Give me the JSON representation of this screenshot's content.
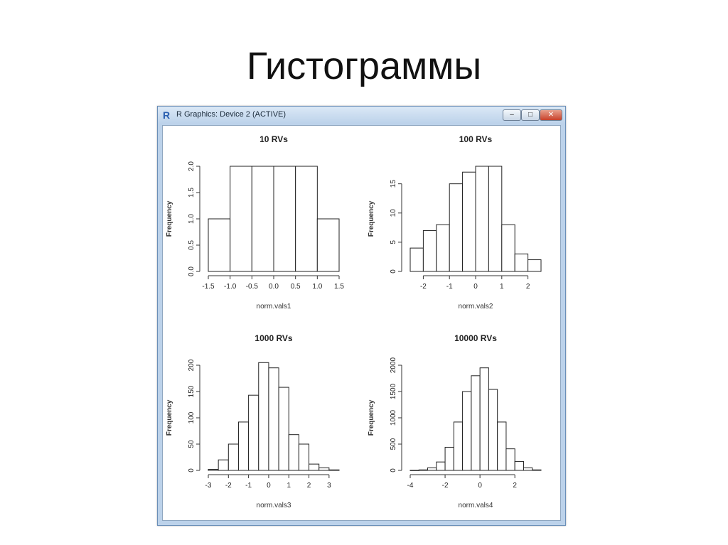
{
  "slide": {
    "title": "Гистограммы"
  },
  "window": {
    "title": "R Graphics: Device 2 (ACTIVE)",
    "logo": "R",
    "icons": [
      "r-logo-icon",
      "minimize-icon",
      "maximize-icon",
      "close-icon"
    ],
    "buttons": {
      "minimize": "–",
      "maximize": "□",
      "close": "✕"
    }
  },
  "chart_data": [
    {
      "type": "bar",
      "title": "10 RVs",
      "xlabel": "norm.vals1",
      "ylabel": "Frequency",
      "bin_edges": [
        -1.5,
        -1.0,
        -0.5,
        0.0,
        0.5,
        1.0,
        1.5
      ],
      "values": [
        1,
        2,
        2,
        2,
        2,
        1
      ],
      "xticks": [
        "-1.5",
        "-1.0",
        "-0.5",
        "0.0",
        "0.5",
        "1.0",
        "1.5"
      ],
      "yticks": [
        "0.0",
        "0.5",
        "1.0",
        "1.5",
        "2.0"
      ],
      "xlim": [
        -1.5,
        1.5
      ],
      "ylim": [
        0,
        2
      ]
    },
    {
      "type": "bar",
      "title": "100 RVs",
      "xlabel": "norm.vals2",
      "ylabel": "Frequency",
      "bin_edges": [
        -2.5,
        -2.0,
        -1.5,
        -1.0,
        -0.5,
        0.0,
        0.5,
        1.0,
        1.5,
        2.0,
        2.5
      ],
      "values": [
        4,
        7,
        8,
        15,
        17,
        18,
        18,
        8,
        3,
        2
      ],
      "xticks": [
        "-2",
        "-1",
        "0",
        "1",
        "2"
      ],
      "yticks": [
        "0",
        "5",
        "10",
        "15"
      ],
      "xlim": [
        -2.5,
        2.5
      ],
      "ylim": [
        0,
        18
      ]
    },
    {
      "type": "bar",
      "title": "1000 RVs",
      "xlabel": "norm.vals3",
      "ylabel": "Frequency",
      "bin_edges": [
        -3.0,
        -2.5,
        -2.0,
        -1.5,
        -1.0,
        -0.5,
        0.0,
        0.5,
        1.0,
        1.5,
        2.0,
        2.5,
        3.0,
        3.5
      ],
      "values": [
        2,
        20,
        50,
        92,
        143,
        205,
        195,
        158,
        68,
        50,
        12,
        5,
        1
      ],
      "xticks": [
        "-3",
        "-2",
        "-1",
        "0",
        "1",
        "2",
        "3"
      ],
      "yticks": [
        "0",
        "50",
        "100",
        "150",
        "200"
      ],
      "xlim": [
        -3,
        3.5
      ],
      "ylim": [
        0,
        200
      ]
    },
    {
      "type": "bar",
      "title": "10000 RVs",
      "xlabel": "norm.vals4",
      "ylabel": "Frequency",
      "bin_edges": [
        -4.0,
        -3.5,
        -3.0,
        -2.5,
        -2.0,
        -1.5,
        -1.0,
        -0.5,
        0.0,
        0.5,
        1.0,
        1.5,
        2.0,
        2.5,
        3.0,
        3.5
      ],
      "values": [
        2,
        10,
        50,
        160,
        440,
        920,
        1500,
        1800,
        1950,
        1540,
        920,
        410,
        170,
        50,
        10
      ],
      "xticks": [
        "-4",
        "-2",
        "0",
        "2"
      ],
      "yticks": [
        "0",
        "500",
        "1000",
        "1500",
        "2000"
      ],
      "xlim": [
        -4,
        3.5
      ],
      "ylim": [
        0,
        2000
      ]
    }
  ]
}
